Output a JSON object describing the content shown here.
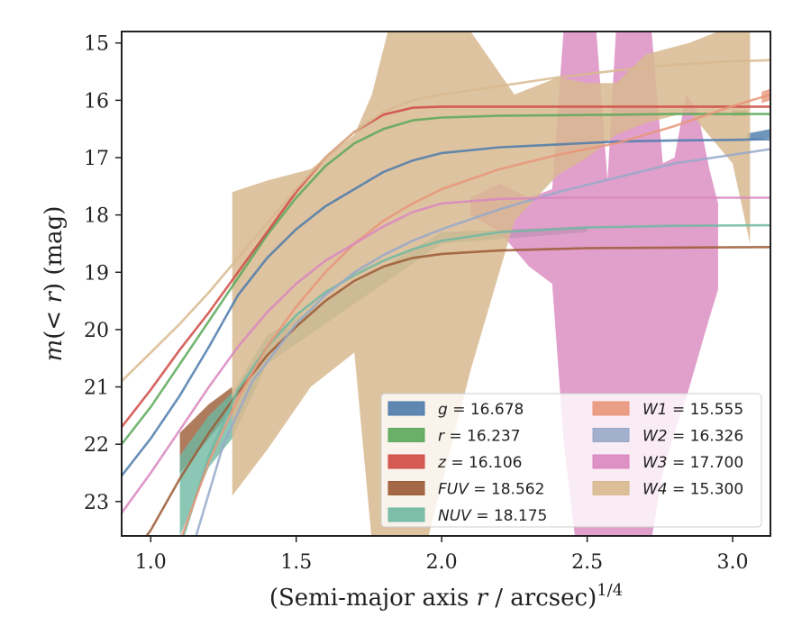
{
  "chart_data": {
    "type": "line",
    "xlabel": "(Semi-major axis r / arcsec)^{1/4}",
    "xlabel_parts": {
      "main": "(Semi-major axis ",
      "var": "r",
      "rest": " / arcsec)",
      "sup": "1/4"
    },
    "ylabel": "m(< r) (mag)",
    "ylabel_parts": {
      "m": "m",
      "open": "(",
      "lt": "< ",
      "r": "r",
      "close": ") (mag)"
    },
    "xlim": [
      0.9,
      3.13
    ],
    "ylim": [
      23.6,
      14.8
    ],
    "y_inverted": true,
    "grid": false,
    "legend_location": "lower right",
    "legend_columns": 2,
    "x_ticks": [
      {
        "value": 1.0,
        "label": "1.0"
      },
      {
        "value": 1.5,
        "label": "1.5"
      },
      {
        "value": 2.0,
        "label": "2.0"
      },
      {
        "value": 2.5,
        "label": "2.5"
      },
      {
        "value": 3.0,
        "label": "3.0"
      }
    ],
    "y_ticks": [
      {
        "value": 15,
        "label": "15"
      },
      {
        "value": 16,
        "label": "16"
      },
      {
        "value": 17,
        "label": "17"
      },
      {
        "value": 18,
        "label": "18"
      },
      {
        "value": 19,
        "label": "19"
      },
      {
        "value": 20,
        "label": "20"
      },
      {
        "value": 21,
        "label": "21"
      },
      {
        "value": 22,
        "label": "22"
      },
      {
        "value": 23,
        "label": "23"
      }
    ],
    "series": [
      {
        "name": "g",
        "legend_value": "16.678",
        "legend_label": "g = 16.678",
        "color": "#4c7bab",
        "model": [
          [
            0.9,
            22.55
          ],
          [
            1.0,
            21.9
          ],
          [
            1.1,
            21.15
          ],
          [
            1.2,
            20.3
          ],
          [
            1.3,
            19.4
          ],
          [
            1.4,
            18.75
          ],
          [
            1.5,
            18.25
          ],
          [
            1.6,
            17.85
          ],
          [
            1.7,
            17.55
          ],
          [
            1.8,
            17.25
          ],
          [
            1.9,
            17.05
          ],
          [
            2.0,
            16.92
          ],
          [
            2.2,
            16.82
          ],
          [
            2.4,
            16.77
          ],
          [
            2.6,
            16.72
          ],
          [
            2.8,
            16.7
          ],
          [
            3.0,
            16.69
          ],
          [
            3.13,
            16.68
          ]
        ],
        "band": [
          [
            3.05,
            16.7,
            16.58
          ],
          [
            3.13,
            16.65,
            16.5
          ]
        ]
      },
      {
        "name": "r",
        "legend_value": "16.237",
        "legend_label": "r = 16.237",
        "color": "#5aa85a",
        "model": [
          [
            0.9,
            22.0
          ],
          [
            1.0,
            21.35
          ],
          [
            1.1,
            20.6
          ],
          [
            1.2,
            19.85
          ],
          [
            1.3,
            19.1
          ],
          [
            1.4,
            18.35
          ],
          [
            1.5,
            17.7
          ],
          [
            1.6,
            17.15
          ],
          [
            1.7,
            16.75
          ],
          [
            1.8,
            16.5
          ],
          [
            1.9,
            16.35
          ],
          [
            2.0,
            16.3
          ],
          [
            2.2,
            16.27
          ],
          [
            2.4,
            16.26
          ],
          [
            2.6,
            16.25
          ],
          [
            2.8,
            16.24
          ],
          [
            3.0,
            16.24
          ],
          [
            3.13,
            16.24
          ]
        ],
        "band": [
          [
            3.0,
            16.28,
            16.18
          ],
          [
            3.05,
            16.26,
            16.18
          ]
        ]
      },
      {
        "name": "z",
        "legend_value": "16.106",
        "legend_label": "z = 16.106",
        "color": "#d04a45",
        "model": [
          [
            0.9,
            21.7
          ],
          [
            1.0,
            21.05
          ],
          [
            1.1,
            20.35
          ],
          [
            1.2,
            19.7
          ],
          [
            1.3,
            19.0
          ],
          [
            1.4,
            18.3
          ],
          [
            1.5,
            17.6
          ],
          [
            1.6,
            17.0
          ],
          [
            1.7,
            16.55
          ],
          [
            1.8,
            16.25
          ],
          [
            1.9,
            16.13
          ],
          [
            2.0,
            16.11
          ],
          [
            2.4,
            16.11
          ],
          [
            2.8,
            16.11
          ],
          [
            3.13,
            16.11
          ]
        ],
        "band": []
      },
      {
        "name": "FUV",
        "legend_value": "18.562",
        "legend_label": "FUV = 18.562",
        "color": "#9b5a35",
        "model": [
          [
            0.9,
            24.2
          ],
          [
            1.0,
            23.5
          ],
          [
            1.1,
            22.6
          ],
          [
            1.2,
            21.8
          ],
          [
            1.3,
            21.1
          ],
          [
            1.4,
            20.45
          ],
          [
            1.5,
            19.95
          ],
          [
            1.6,
            19.5
          ],
          [
            1.7,
            19.15
          ],
          [
            1.8,
            18.9
          ],
          [
            1.9,
            18.75
          ],
          [
            2.0,
            18.68
          ],
          [
            2.2,
            18.62
          ],
          [
            2.5,
            18.58
          ],
          [
            2.8,
            18.57
          ],
          [
            3.13,
            18.56
          ]
        ],
        "band": [
          [
            1.1,
            22.5,
            21.8
          ],
          [
            1.2,
            21.9,
            21.3
          ],
          [
            1.28,
            21.4,
            21.0
          ]
        ]
      },
      {
        "name": "NUV",
        "legend_value": "18.175",
        "legend_label": "NUV = 18.175",
        "color": "#6fb8a2",
        "model": [
          [
            1.1,
            23.8
          ],
          [
            1.2,
            22.2
          ],
          [
            1.3,
            21.05
          ],
          [
            1.4,
            20.3
          ],
          [
            1.5,
            19.75
          ],
          [
            1.6,
            19.35
          ],
          [
            1.7,
            19.05
          ],
          [
            1.8,
            18.8
          ],
          [
            1.9,
            18.6
          ],
          [
            2.0,
            18.45
          ],
          [
            2.2,
            18.3
          ],
          [
            2.5,
            18.22
          ],
          [
            2.8,
            18.19
          ],
          [
            3.13,
            18.18
          ]
        ],
        "band": [
          [
            1.1,
            23.6,
            22.2
          ],
          [
            1.2,
            22.4,
            21.5
          ],
          [
            1.28,
            21.9,
            21.1
          ],
          [
            1.4,
            20.6,
            20.1
          ],
          [
            2.0,
            18.5,
            18.3
          ],
          [
            2.5,
            18.3,
            18.2
          ]
        ]
      },
      {
        "name": "W1",
        "legend_value": "15.555",
        "legend_label": "W1 = 15.555",
        "color": "#e8967a",
        "model": [
          [
            1.1,
            23.7
          ],
          [
            1.2,
            22.3
          ],
          [
            1.3,
            21.2
          ],
          [
            1.4,
            20.3
          ],
          [
            1.5,
            19.6
          ],
          [
            1.6,
            19.0
          ],
          [
            1.7,
            18.5
          ],
          [
            1.8,
            18.1
          ],
          [
            1.9,
            17.8
          ],
          [
            2.0,
            17.55
          ],
          [
            2.2,
            17.2
          ],
          [
            2.4,
            16.95
          ],
          [
            2.6,
            16.75
          ],
          [
            2.8,
            16.45
          ],
          [
            3.0,
            16.1
          ],
          [
            3.13,
            15.9
          ]
        ],
        "band": [
          [
            3.1,
            16.05,
            15.85
          ],
          [
            3.13,
            16.0,
            15.8
          ]
        ]
      },
      {
        "name": "W2",
        "legend_value": "16.326",
        "legend_label": "W2 = 16.326",
        "color": "#98a9c9",
        "model": [
          [
            1.15,
            23.7
          ],
          [
            1.25,
            22.0
          ],
          [
            1.35,
            20.9
          ],
          [
            1.5,
            19.9
          ],
          [
            1.6,
            19.4
          ],
          [
            1.7,
            19.0
          ],
          [
            1.8,
            18.7
          ],
          [
            1.9,
            18.45
          ],
          [
            2.0,
            18.25
          ],
          [
            2.2,
            17.9
          ],
          [
            2.4,
            17.6
          ],
          [
            2.6,
            17.35
          ],
          [
            2.8,
            17.1
          ],
          [
            3.0,
            16.95
          ],
          [
            3.13,
            16.85
          ]
        ],
        "band": []
      },
      {
        "name": "W3",
        "legend_value": "17.700",
        "legend_label": "W3 = 17.700",
        "color": "#d987bf",
        "model": [
          [
            0.9,
            23.2
          ],
          [
            1.0,
            22.5
          ],
          [
            1.1,
            21.75
          ],
          [
            1.2,
            21.0
          ],
          [
            1.3,
            20.3
          ],
          [
            1.4,
            19.7
          ],
          [
            1.5,
            19.2
          ],
          [
            1.6,
            18.8
          ],
          [
            1.7,
            18.5
          ],
          [
            1.8,
            18.2
          ],
          [
            1.9,
            17.95
          ],
          [
            2.0,
            17.8
          ],
          [
            2.2,
            17.72
          ],
          [
            2.4,
            17.7
          ],
          [
            2.6,
            17.7
          ],
          [
            2.8,
            17.7
          ],
          [
            3.13,
            17.7
          ]
        ],
        "band": [
          [
            2.1,
            17.7,
            18.0
          ],
          [
            2.2,
            17.45,
            18.3
          ],
          [
            2.3,
            17.7,
            18.9
          ],
          [
            2.38,
            17.55,
            19.2
          ],
          [
            2.42,
            14.7,
            22.0
          ],
          [
            2.46,
            14.7,
            23.7
          ],
          [
            2.53,
            14.7,
            23.7
          ],
          [
            2.57,
            17.4,
            23.7
          ],
          [
            2.6,
            14.7,
            23.7
          ],
          [
            2.66,
            14.7,
            23.7
          ],
          [
            2.72,
            14.7,
            23.7
          ],
          [
            2.76,
            17.1,
            22.5
          ],
          [
            2.8,
            17.0,
            21.8
          ],
          [
            2.84,
            15.9,
            21.2
          ],
          [
            2.88,
            16.2,
            20.5
          ],
          [
            2.92,
            17.2,
            19.8
          ],
          [
            2.95,
            17.8,
            19.3
          ]
        ]
      },
      {
        "name": "W4",
        "legend_value": "15.300",
        "legend_label": "W4 = 15.300",
        "color": "#d8b98f",
        "model": [
          [
            0.9,
            20.9
          ],
          [
            1.0,
            20.4
          ],
          [
            1.1,
            19.9
          ],
          [
            1.2,
            19.35
          ],
          [
            1.3,
            18.75
          ],
          [
            1.4,
            18.15
          ],
          [
            1.5,
            17.55
          ],
          [
            1.6,
            17.0
          ],
          [
            1.7,
            16.55
          ],
          [
            1.8,
            16.2
          ],
          [
            1.9,
            16.0
          ],
          [
            2.0,
            15.9
          ],
          [
            2.2,
            15.75
          ],
          [
            2.4,
            15.6
          ],
          [
            2.6,
            15.48
          ],
          [
            2.8,
            15.38
          ],
          [
            3.0,
            15.32
          ],
          [
            3.13,
            15.3
          ]
        ],
        "band": [
          [
            1.28,
            17.6,
            22.9
          ],
          [
            1.4,
            17.4,
            22.1
          ],
          [
            1.55,
            17.2,
            21.0
          ],
          [
            1.7,
            16.6,
            20.4
          ],
          [
            1.76,
            15.9,
            23.7
          ],
          [
            1.82,
            14.7,
            23.7
          ],
          [
            1.95,
            14.7,
            23.7
          ],
          [
            2.1,
            14.8,
            20.7
          ],
          [
            2.25,
            15.9,
            18.1
          ],
          [
            2.4,
            15.6,
            17.3
          ],
          [
            2.5,
            15.7,
            17.0
          ],
          [
            2.6,
            15.7,
            16.6
          ],
          [
            2.7,
            15.2,
            16.4
          ],
          [
            2.85,
            15.0,
            16.2
          ],
          [
            3.0,
            14.7,
            17.1
          ],
          [
            3.06,
            14.7,
            18.5
          ]
        ]
      }
    ]
  }
}
